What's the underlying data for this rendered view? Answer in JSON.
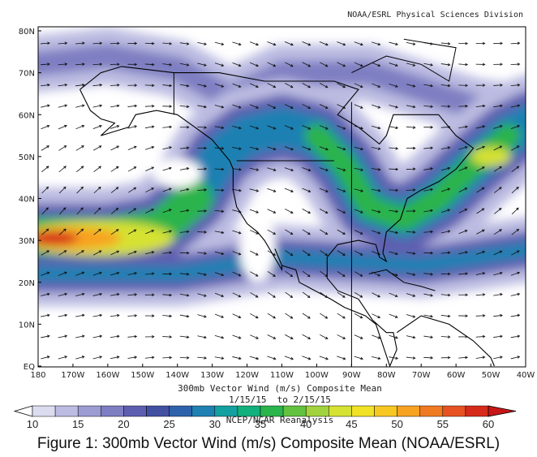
{
  "header": {
    "credit": "NOAA/ESRL Physical Sciences Division"
  },
  "map": {
    "lon_labels": [
      "180",
      "170W",
      "160W",
      "150W",
      "140W",
      "130W",
      "120W",
      "110W",
      "100W",
      "90W",
      "80W",
      "70W",
      "60W",
      "50W",
      "40W"
    ],
    "lat_labels": [
      "EQ",
      "10N",
      "20N",
      "30N",
      "40N",
      "50N",
      "60N",
      "70N",
      "80N"
    ]
  },
  "plot_title": "300mb Vector Wind (m/s) Composite Mean",
  "date_range": "1/15/15  to 2/15/15",
  "source": "NCEP/NCAR Reanalysis",
  "colorbar": {
    "levels": [
      10,
      15,
      20,
      25,
      30,
      35,
      40,
      45,
      50,
      55,
      60
    ],
    "colors": [
      "#ffffff",
      "#dcdcf0",
      "#bcbce2",
      "#9c9cd2",
      "#7e7ec2",
      "#5e5eb0",
      "#4250a2",
      "#2e62aa",
      "#1f80b2",
      "#13a0a0",
      "#12b07c",
      "#2ab44c",
      "#62c23e",
      "#a2d23e",
      "#d6e232",
      "#f2e226",
      "#f8c822",
      "#f8a222",
      "#f07a22",
      "#e65222",
      "#d62a1a",
      "#c81616"
    ]
  },
  "caption": "Figure 1: 300mb Vector Wind (m/s) Composite Mean (NOAA/ESRL)"
}
